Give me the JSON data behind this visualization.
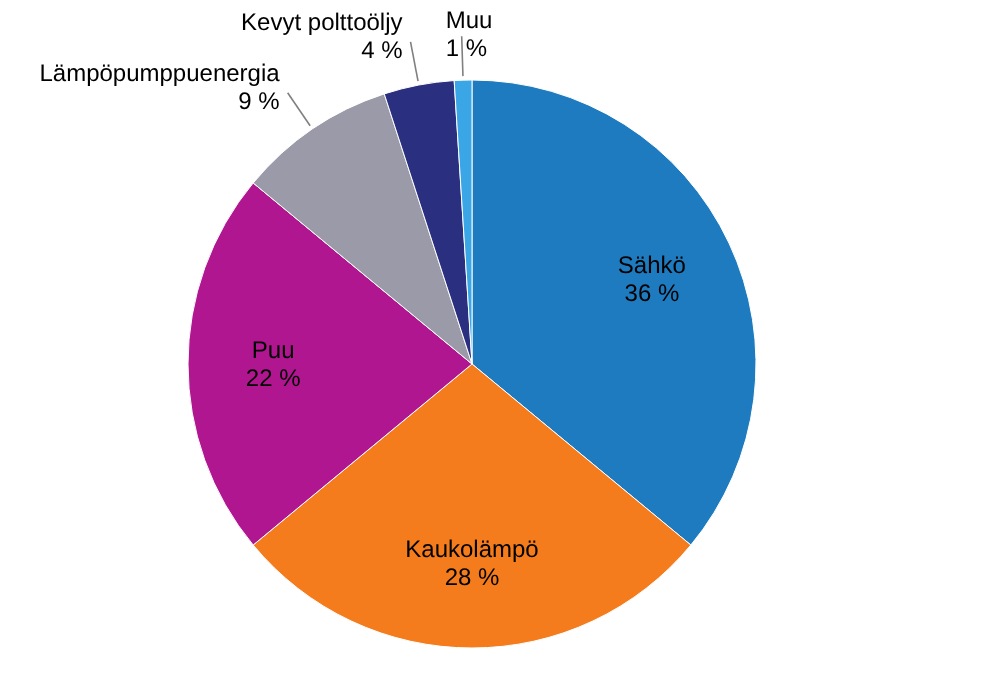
{
  "chart_data": {
    "type": "pie",
    "categories": [
      "Sähkö",
      "Kaukolämpö",
      "Puu",
      "Lämpöpumppuenergia",
      "Kevyt polttoöljy",
      "Muu"
    ],
    "values": [
      36,
      28,
      22,
      9,
      4,
      1
    ],
    "value_labels": [
      "36 %",
      "28 %",
      "22 %",
      "9 %",
      "4 %",
      "1 %"
    ],
    "colors": [
      "#1f7bbf",
      "#f47c1c",
      "#b0168f",
      "#9b9aa8",
      "#2b2f80",
      "#3aa6e6"
    ]
  }
}
